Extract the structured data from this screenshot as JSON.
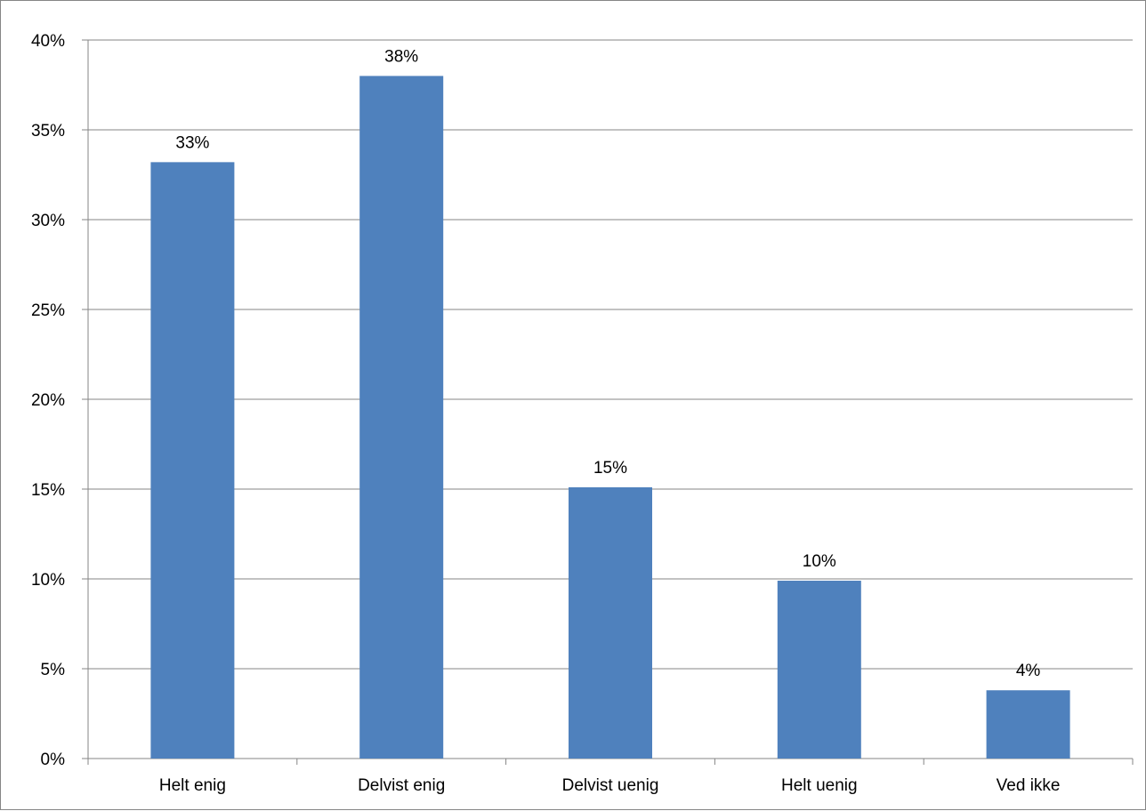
{
  "chart_data": {
    "type": "bar",
    "categories": [
      "Helt enig",
      "Delvist enig",
      "Delvist uenig",
      "Helt uenig",
      "Ved ikke"
    ],
    "values": [
      33.2,
      38.0,
      15.1,
      9.9,
      3.8
    ],
    "data_labels": [
      "33%",
      "38%",
      "15%",
      "10%",
      "4%"
    ],
    "y_ticks": [
      "0%",
      "5%",
      "10%",
      "15%",
      "20%",
      "25%",
      "30%",
      "35%",
      "40%"
    ],
    "ylim": [
      0,
      40
    ],
    "ytick_step": 5,
    "grid": true,
    "legend": "none",
    "title": "",
    "xlabel": "",
    "ylabel": "",
    "colors": {
      "bar": "#4F81BD",
      "grid": "#868686",
      "axis": "#868686",
      "text": "#000000"
    }
  }
}
